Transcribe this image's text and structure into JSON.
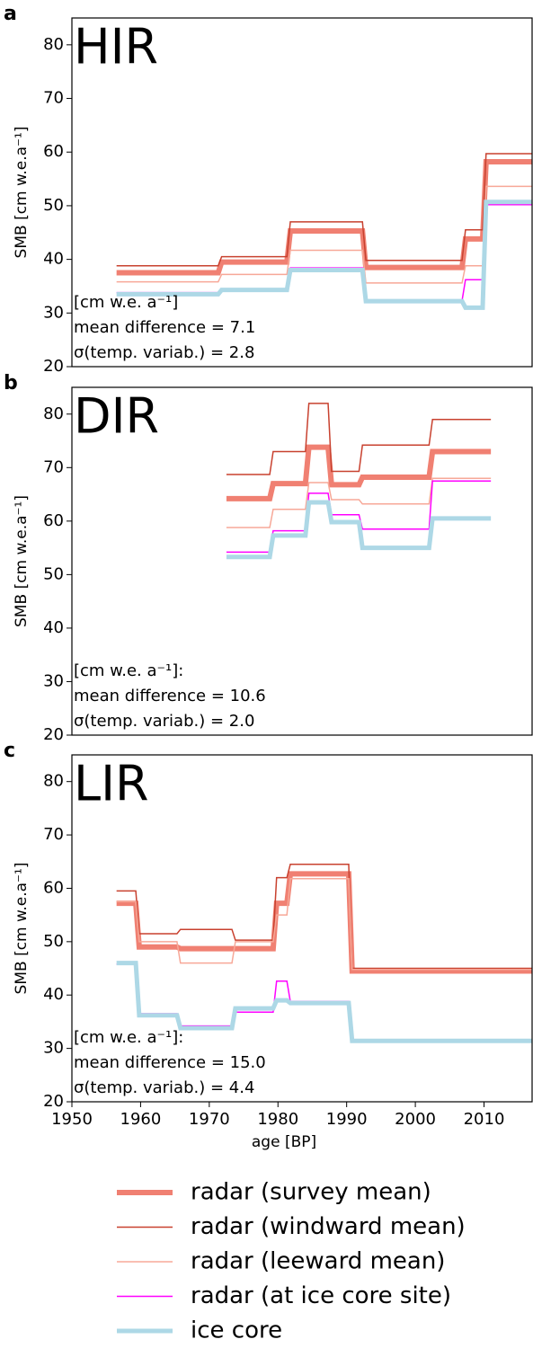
{
  "chart_data": [
    {
      "type": "line",
      "letter": "a",
      "title": "HIR",
      "ylabel": "SMB [cm w.e.a⁻¹]",
      "xlim": [
        1950,
        2017
      ],
      "ylim": [
        20,
        85
      ],
      "yticks": [
        20,
        30,
        40,
        50,
        60,
        70,
        80
      ],
      "annotations": [
        "[cm w.e. a⁻¹]",
        "mean difference = 7.1",
        "σ(temp. variab.) = 2.8"
      ],
      "x": [
        1956.5,
        1971.3,
        1971.8,
        1981.3,
        1981.8,
        1992.3,
        1992.8,
        2006.8,
        2007.3,
        2009.8,
        2010.3,
        2017
      ],
      "series": [
        {
          "name": "radar (survey mean)",
          "color": "#f08072",
          "width": 6,
          "values": [
            37.5,
            37.5,
            39.5,
            39.5,
            45.3,
            45.3,
            38.5,
            38.5,
            43.8,
            43.8,
            58.2,
            58.2
          ]
        },
        {
          "name": "radar (windward mean)",
          "color": "#c8412f",
          "width": 1.5,
          "values": [
            38.8,
            38.8,
            40.5,
            40.5,
            47,
            47,
            39.8,
            39.8,
            45.5,
            45.5,
            59.7,
            59.7
          ]
        },
        {
          "name": "radar (leeward mean)",
          "color": "#f7a898",
          "width": 1.5,
          "values": [
            35.8,
            35.8,
            37.2,
            37.2,
            41.7,
            41.7,
            35.6,
            35.6,
            38.8,
            38.8,
            53.6,
            53.6
          ]
        },
        {
          "name": "radar (at ice core site)",
          "color": "#ff00ff",
          "width": 1.5,
          "values": [
            33.8,
            33.8,
            34.5,
            34.5,
            38.4,
            38.4,
            32.3,
            32.3,
            36.2,
            36.2,
            50.2,
            50.2
          ]
        },
        {
          "name": "ice core",
          "color": "#add8e6",
          "width": 5,
          "values": [
            33.5,
            33.5,
            34.3,
            34.3,
            38,
            38,
            32.2,
            32.2,
            31,
            31,
            50.7,
            50.7
          ]
        }
      ]
    },
    {
      "type": "line",
      "letter": "b",
      "title": "DIR",
      "ylabel": "SMB [cm w.e.a⁻¹]",
      "xlim": [
        1950,
        2017
      ],
      "ylim": [
        20,
        85
      ],
      "yticks": [
        20,
        30,
        40,
        50,
        60,
        70,
        80
      ],
      "annotations": [
        "[cm w.e. a⁻¹]:",
        "mean difference = 10.6",
        "σ(temp. variab.) = 2.0"
      ],
      "x": [
        1972.5,
        1978.8,
        1979.3,
        1984,
        1984.5,
        1987.3,
        1987.8,
        1991.8,
        1992.3,
        2002,
        2002.5,
        2011
      ],
      "series": [
        {
          "name": "radar (survey mean)",
          "color": "#f08072",
          "width": 6,
          "values": [
            64.2,
            64.2,
            67,
            67,
            73.8,
            73.8,
            66.8,
            66.8,
            68.2,
            68.2,
            73,
            73
          ]
        },
        {
          "name": "radar (windward mean)",
          "color": "#c8412f",
          "width": 1.5,
          "values": [
            68.7,
            68.7,
            73,
            73,
            82,
            82,
            69.3,
            69.3,
            74.2,
            74.2,
            79,
            79
          ]
        },
        {
          "name": "radar (leeward mean)",
          "color": "#f7a898",
          "width": 1.5,
          "values": [
            58.8,
            58.8,
            62.2,
            62.2,
            67.2,
            67.2,
            64,
            64,
            63.2,
            63.2,
            68,
            68
          ]
        },
        {
          "name": "radar (at ice core site)",
          "color": "#ff00ff",
          "width": 1.5,
          "values": [
            54.2,
            54.2,
            58.2,
            58.2,
            65.2,
            65.2,
            61.2,
            61.2,
            58.5,
            58.5,
            67.5,
            67.5
          ]
        },
        {
          "name": "ice core",
          "color": "#add8e6",
          "width": 5,
          "values": [
            53.3,
            53.3,
            57.3,
            57.3,
            63.5,
            63.5,
            59.8,
            59.8,
            55,
            55,
            60.5,
            60.5
          ]
        }
      ]
    },
    {
      "type": "line",
      "letter": "c",
      "title": "LIR",
      "ylabel": "SMB [cm w.e.a⁻¹]",
      "xlabel": "age [BP]",
      "xlim": [
        1950,
        2017
      ],
      "ylim": [
        20,
        85
      ],
      "yticks": [
        20,
        30,
        40,
        50,
        60,
        70,
        80
      ],
      "xticks": [
        1950,
        1960,
        1970,
        1980,
        1990,
        2000,
        2010
      ],
      "annotations": [
        "[cm w.e. a⁻¹]:",
        "mean difference = 15.0",
        "σ(temp. variab.) = 4.4"
      ],
      "x": [
        1956.5,
        1959.3,
        1959.8,
        1965.3,
        1965.8,
        1973.3,
        1973.8,
        1979.3,
        1979.8,
        1981.3,
        1981.8,
        1990.3,
        1990.8,
        2017
      ],
      "series": [
        {
          "name": "radar (survey mean)",
          "color": "#f08072",
          "width": 6,
          "values": [
            57.2,
            57.2,
            49,
            49,
            48.7,
            48.7,
            48.7,
            48.7,
            57.2,
            57.2,
            62.7,
            62.7,
            44.5,
            44.5
          ]
        },
        {
          "name": "radar (windward mean)",
          "color": "#c8412f",
          "width": 1.5,
          "values": [
            59.5,
            59.5,
            51.5,
            51.5,
            52.3,
            52.3,
            50.3,
            50.3,
            62,
            62,
            64.5,
            64.5,
            45,
            45
          ]
        },
        {
          "name": "radar (leeward mean)",
          "color": "#f7a898",
          "width": 1.5,
          "values": [
            57.5,
            57.5,
            50,
            50,
            46,
            46,
            50,
            50,
            55,
            55,
            61.8,
            61.8,
            44.8,
            44.8
          ]
        },
        {
          "name": "radar (at ice core site)",
          "color": "#ff00ff",
          "width": 1.5,
          "values": [
            45.8,
            45.8,
            36.5,
            36.5,
            34.2,
            34.2,
            36.8,
            36.8,
            42.6,
            42.6,
            38.8,
            38.8,
            31.6,
            31.6
          ]
        },
        {
          "name": "ice core",
          "color": "#add8e6",
          "width": 5,
          "values": [
            46,
            46,
            36.2,
            36.2,
            33.8,
            33.8,
            37.5,
            37.5,
            39,
            39,
            38.5,
            38.5,
            31.4,
            31.4
          ]
        }
      ]
    }
  ]
}
